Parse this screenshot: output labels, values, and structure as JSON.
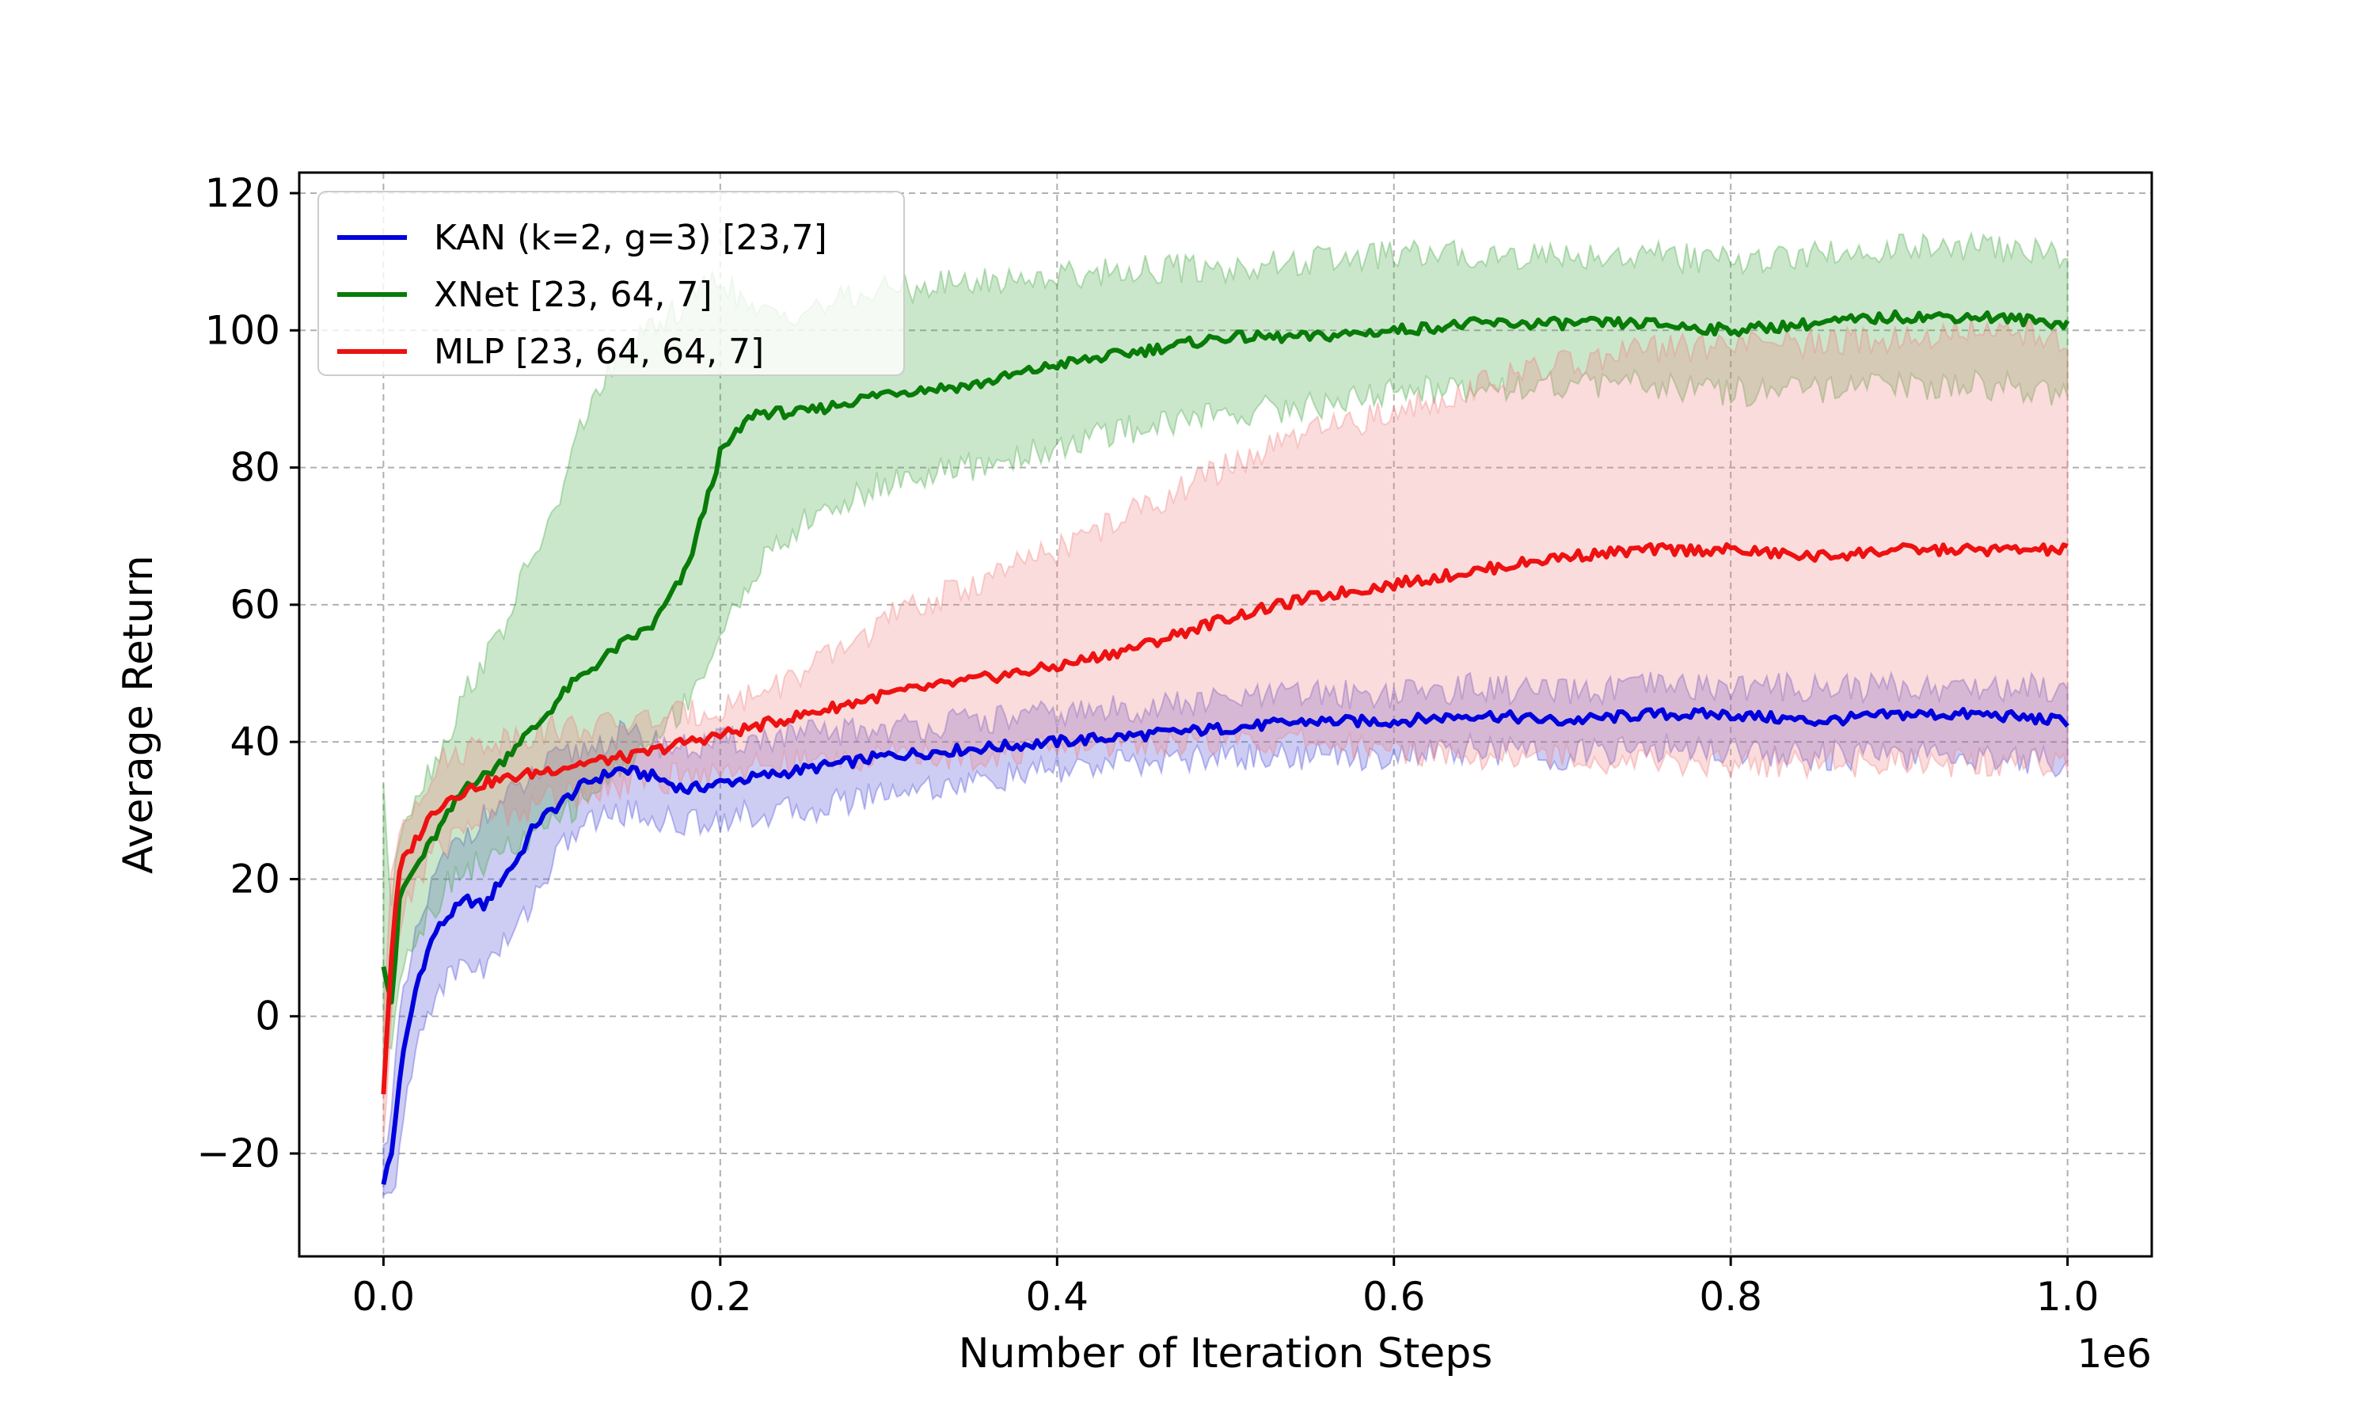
{
  "chart_data": {
    "type": "line",
    "title": "",
    "xlabel": "Number of Iteration Steps",
    "ylabel": "Average Return",
    "x_offset_label": "1e6",
    "xlim": [
      -0.05,
      1.05
    ],
    "ylim": [
      -35,
      123
    ],
    "xticks": [
      0.0,
      0.2,
      0.4,
      0.6,
      0.8,
      1.0
    ],
    "xtick_labels": [
      "0.0",
      "0.2",
      "0.4",
      "0.6",
      "0.8",
      "1.0"
    ],
    "yticks": [
      -20,
      0,
      20,
      40,
      60,
      80,
      100,
      120
    ],
    "ytick_labels": [
      "−20",
      "0",
      "20",
      "40",
      "60",
      "80",
      "100",
      "120"
    ],
    "grid": true,
    "legend_position": "top-left",
    "series": [
      {
        "name": "KAN (k=2, g=3) [23,7]",
        "color": "#0000dd",
        "band_color": "#4b4bd8",
        "x": [
          0.0,
          0.005,
          0.01,
          0.02,
          0.03,
          0.04,
          0.05,
          0.06,
          0.07,
          0.08,
          0.09,
          0.1,
          0.11,
          0.12,
          0.14,
          0.16,
          0.18,
          0.2,
          0.25,
          0.3,
          0.35,
          0.4,
          0.45,
          0.5,
          0.55,
          0.6,
          0.65,
          0.7,
          0.75,
          0.8,
          0.85,
          0.9,
          0.95,
          1.0
        ],
        "mean": [
          -24,
          -20,
          -8,
          5,
          12,
          15,
          17,
          16,
          20,
          23,
          28,
          30,
          32,
          34,
          36,
          35,
          33,
          34,
          36,
          38,
          39,
          40,
          41,
          42,
          43,
          43,
          44,
          43,
          44,
          44,
          43,
          44,
          44,
          43
        ],
        "upper": [
          -20,
          -12,
          0,
          12,
          20,
          24,
          27,
          29,
          31,
          33,
          35,
          37,
          38,
          39,
          41,
          40,
          39,
          40,
          41,
          42,
          43,
          44,
          45,
          46,
          47,
          47,
          48,
          47,
          48,
          48,
          48,
          48,
          48,
          48
        ],
        "lower": [
          -27,
          -27,
          -18,
          -4,
          3,
          6,
          8,
          7,
          10,
          13,
          18,
          22,
          26,
          28,
          30,
          29,
          28,
          29,
          30,
          33,
          34,
          36,
          37,
          38,
          38,
          38,
          39,
          38,
          39,
          39,
          38,
          38,
          38,
          37
        ]
      },
      {
        "name": "XNet [23, 64, 7]",
        "color": "#087b08",
        "band_color": "#45a845",
        "x": [
          0.0,
          0.005,
          0.01,
          0.02,
          0.03,
          0.04,
          0.05,
          0.06,
          0.07,
          0.08,
          0.09,
          0.1,
          0.11,
          0.12,
          0.14,
          0.16,
          0.18,
          0.2,
          0.22,
          0.25,
          0.3,
          0.35,
          0.4,
          0.45,
          0.5,
          0.55,
          0.6,
          0.65,
          0.7,
          0.75,
          0.8,
          0.85,
          0.9,
          0.95,
          1.0
        ],
        "mean": [
          8,
          2,
          18,
          22,
          26,
          30,
          34,
          35,
          37,
          40,
          42,
          45,
          48,
          50,
          54,
          57,
          65,
          82,
          88,
          88,
          91,
          92,
          95,
          97,
          99,
          99,
          100,
          101,
          101,
          101,
          100,
          101,
          102,
          102,
          101
        ],
        "upper": [
          34,
          15,
          28,
          33,
          37,
          42,
          48,
          52,
          56,
          62,
          68,
          72,
          80,
          88,
          96,
          100,
          104,
          108,
          102,
          103,
          106,
          107,
          108,
          109,
          109,
          110,
          111,
          111,
          111,
          111,
          110,
          111,
          112,
          112,
          111
        ],
        "lower": [
          -8,
          -4,
          8,
          12,
          16,
          20,
          22,
          22,
          24,
          25,
          26,
          28,
          30,
          32,
          36,
          40,
          46,
          55,
          65,
          72,
          78,
          80,
          83,
          86,
          88,
          89,
          91,
          92,
          92,
          92,
          91,
          91,
          92,
          92,
          91
        ]
      },
      {
        "name": "MLP [23, 64, 64, 7]",
        "color": "#ee1111",
        "band_color": "#f08080",
        "x": [
          0.0,
          0.005,
          0.01,
          0.02,
          0.03,
          0.04,
          0.05,
          0.06,
          0.08,
          0.1,
          0.12,
          0.15,
          0.18,
          0.2,
          0.25,
          0.3,
          0.35,
          0.4,
          0.45,
          0.5,
          0.55,
          0.6,
          0.65,
          0.7,
          0.75,
          0.8,
          0.85,
          0.9,
          0.95,
          1.0
        ],
        "mean": [
          -11,
          10,
          22,
          26,
          30,
          32,
          33,
          34,
          35,
          36,
          37,
          38,
          40,
          41,
          44,
          47,
          49,
          51,
          54,
          58,
          61,
          63,
          65,
          67,
          68,
          68,
          67,
          68,
          68,
          68
        ],
        "upper": [
          0,
          20,
          28,
          32,
          36,
          38,
          39,
          40,
          41,
          42,
          42,
          43,
          44,
          45,
          50,
          58,
          63,
          68,
          74,
          80,
          85,
          88,
          92,
          95,
          97,
          98,
          98,
          99,
          100,
          99
        ],
        "lower": [
          -18,
          0,
          14,
          20,
          24,
          26,
          28,
          29,
          30,
          32,
          33,
          34,
          35,
          36,
          37,
          38,
          38,
          39,
          40,
          40,
          40,
          39,
          38,
          38,
          37,
          37,
          37,
          37,
          37,
          37
        ]
      }
    ]
  }
}
